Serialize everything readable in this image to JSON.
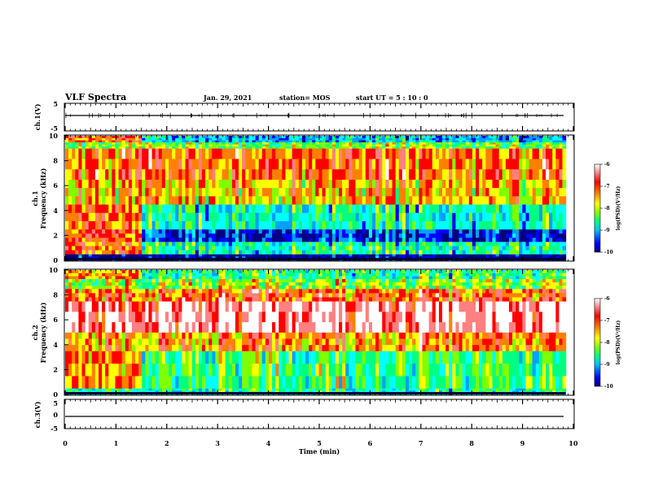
{
  "header": {
    "title": "VLF Spectra",
    "date": "Jan. 29, 2021",
    "station": "station= MOS",
    "start": "start  UT  =   5  : 10 : 0"
  },
  "colors": {
    "spectrum": [
      "#000080",
      "#0000ff",
      "#00a0ff",
      "#00ffff",
      "#00ff80",
      "#80ff00",
      "#ffff00",
      "#ff8000",
      "#ff0000",
      "#ff8080",
      "#ffffff"
    ],
    "waveform": "#000000",
    "frame": "#000000"
  },
  "chart_data": [
    {
      "type": "line",
      "panel": "ch1-waveform",
      "ylabel": "ch.1(V)",
      "ylim": [
        -5,
        5
      ],
      "y_ticks": [
        "5",
        "-5"
      ],
      "xlim": [
        0,
        10
      ],
      "description_level": 0
    },
    {
      "type": "heatmap",
      "panel": "ch1-spectrogram",
      "ylabel": "ch.1\nFrequency (kHz)",
      "ylabel_line1": "ch.1",
      "ylabel_line2": "Frequency (kHz)",
      "ylim": [
        0,
        10
      ],
      "y_ticks": [
        "0",
        "2",
        "4",
        "6",
        "8",
        "10"
      ],
      "xlim": [
        0,
        10
      ],
      "data_end_min": 9.85,
      "colorbar": {
        "range": [
          -10,
          -6
        ],
        "ticks": [
          "-6",
          "-7",
          "-8",
          "-9",
          "-10"
        ],
        "label": "log(PSD)(V²/Hz)"
      },
      "bands": [
        {
          "f_khz": [
            0,
            0.5
          ],
          "level": -10
        },
        {
          "f_khz": [
            0.5,
            1.5
          ],
          "level": -8.5
        },
        {
          "f_khz": [
            1.5,
            2.5
          ],
          "level": -9.6
        },
        {
          "f_khz": [
            2.5,
            4.5
          ],
          "level": -8.6
        },
        {
          "f_khz": [
            4.5,
            6.5
          ],
          "level": -7.4
        },
        {
          "f_khz": [
            6.5,
            9.0
          ],
          "level": -7.0
        },
        {
          "f_khz": [
            9.0,
            9.5
          ],
          "level": -8.0
        },
        {
          "f_khz": [
            9.5,
            10.0
          ],
          "level": -9.0
        }
      ],
      "early_segment": {
        "t_min": [
          0,
          1.5
        ],
        "level": -7.0
      }
    },
    {
      "type": "heatmap",
      "panel": "ch2-spectrogram",
      "ylabel": "ch.2\nFrequency (kHz)",
      "ylabel_line1": "ch.2",
      "ylabel_line2": "Frequency (kHz)",
      "ylim": [
        0,
        10
      ],
      "y_ticks": [
        "0",
        "2",
        "4",
        "6",
        "8",
        "10"
      ],
      "xlim": [
        0,
        10
      ],
      "data_end_min": 9.85,
      "colorbar": {
        "range": [
          -10,
          -6
        ],
        "ticks": [
          "-6",
          "-7",
          "-8",
          "-9",
          "-10"
        ],
        "label": "log(PSD)(V²/Hz)"
      },
      "bands": [
        {
          "f_khz": [
            0,
            0.5
          ],
          "level": -8.5
        },
        {
          "f_khz": [
            0.5,
            3.5
          ],
          "level": -8.3
        },
        {
          "f_khz": [
            3.5,
            5.0
          ],
          "level": -7.2
        },
        {
          "f_khz": [
            5.0,
            7.5
          ],
          "level": -6.2
        },
        {
          "f_khz": [
            7.5,
            8.5
          ],
          "level": -7.0
        },
        {
          "f_khz": [
            8.5,
            9.3
          ],
          "level": -7.9
        },
        {
          "f_khz": [
            9.3,
            10.0
          ],
          "level": -8.4
        }
      ],
      "early_segment": {
        "t_min": [
          0,
          1.5
        ],
        "level": -7.3
      }
    },
    {
      "type": "line",
      "panel": "ch3-waveform",
      "ylabel": "ch.3(V)",
      "ylim": [
        -5,
        5
      ],
      "y_ticks": [
        "5",
        "0",
        "-5"
      ],
      "xlim": [
        0,
        10
      ],
      "description_level": 0
    }
  ],
  "xaxis": {
    "label": "Time  (min)",
    "ticks": [
      "0",
      "1",
      "2",
      "3",
      "4",
      "5",
      "6",
      "7",
      "8",
      "9",
      "10"
    ]
  }
}
